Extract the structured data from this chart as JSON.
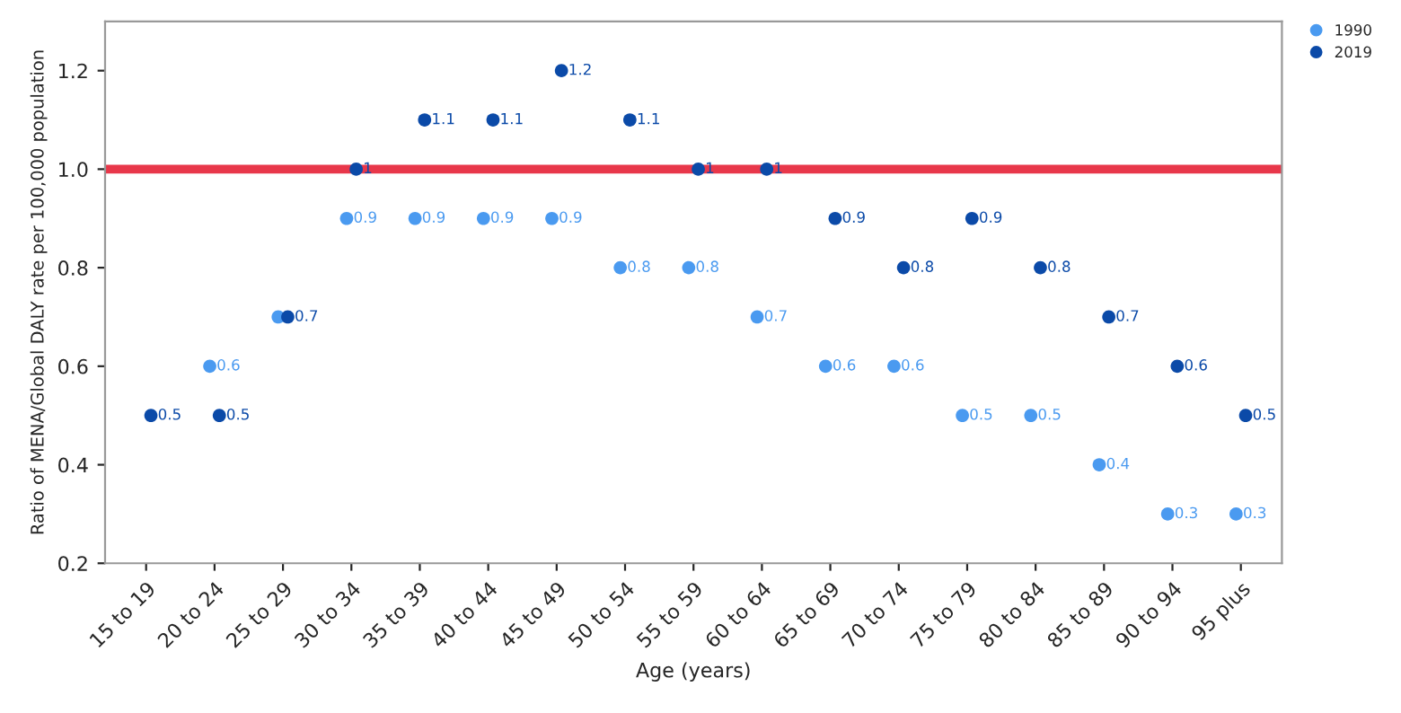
{
  "chart_data": {
    "type": "scatter",
    "xlabel": "Age (years)",
    "ylabel": "Ratio of MENA/Global DALY rate per 100,000 population",
    "categories": [
      "15 to 19",
      "20 to 24",
      "25 to 29",
      "30 to 34",
      "35 to 39",
      "40 to 44",
      "45 to 49",
      "50 to 54",
      "55 to 59",
      "60 to 64",
      "65 to 69",
      "70 to 74",
      "75 to 79",
      "80 to 84",
      "85 to 89",
      "90 to 94",
      "95 plus"
    ],
    "series": [
      {
        "name": "1990",
        "color": "#4a9af0",
        "values": [
          null,
          0.6,
          0.7,
          0.9,
          0.9,
          0.9,
          0.9,
          0.8,
          0.8,
          0.7,
          0.6,
          0.6,
          0.5,
          0.5,
          0.4,
          0.3,
          0.3
        ],
        "value_labels": [
          null,
          "0.6",
          null,
          "0.9",
          "0.9",
          "0.9",
          "0.9",
          "0.8",
          "0.8",
          "0.7",
          "0.6",
          "0.6",
          "0.5",
          "0.5",
          "0.4",
          "0.3",
          "0.3"
        ]
      },
      {
        "name": "2019",
        "color": "#0b4aa8",
        "values": [
          0.5,
          0.5,
          0.7,
          1.0,
          1.1,
          1.1,
          1.2,
          1.1,
          1.0,
          1.0,
          0.9,
          0.8,
          0.9,
          0.8,
          0.7,
          0.6,
          0.5
        ],
        "value_labels": [
          "0.5",
          "0.5",
          "0.7",
          "1",
          "1.1",
          "1.1",
          "1.2",
          "1.1",
          "1",
          "1",
          "0.9",
          "0.8",
          "0.9",
          "0.8",
          "0.7",
          "0.6",
          "0.5"
        ]
      }
    ],
    "ylim": [
      0.2,
      1.3
    ],
    "yticks": [
      0.2,
      0.4,
      0.6,
      0.8,
      {
        "value": 1.0,
        "label": "1.0"
      },
      1.2
    ],
    "ref_lines": [
      {
        "axis": "y",
        "value": 1.0,
        "color": "#e8374a"
      }
    ],
    "legend": "top right",
    "marker": "circle",
    "grid": false
  }
}
